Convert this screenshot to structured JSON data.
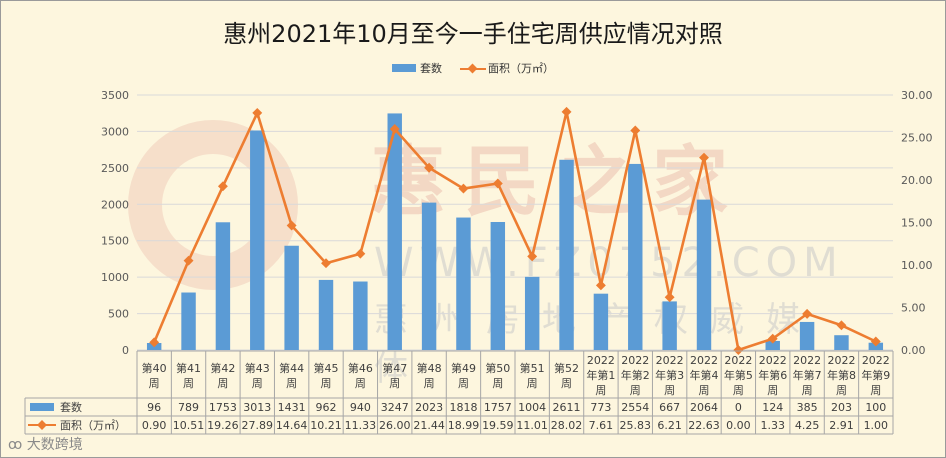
{
  "chart_data": {
    "type": "bar+line",
    "title": "惠州2021年10月至今一手住宅周供应情况对照",
    "categories": [
      "第40周",
      "第41周",
      "第42周",
      "第43周",
      "第44周",
      "第45周",
      "第46周",
      "第47周",
      "第48周",
      "第49周",
      "第50周",
      "第51周",
      "第52周",
      "2022年第1周",
      "2022年第2周",
      "2022年第3周",
      "2022年第4周",
      "2022年第5周",
      "2022年第6周",
      "2022年第7周",
      "2022年第8周",
      "2022年第9周"
    ],
    "category_lines": [
      [
        "第40",
        "周"
      ],
      [
        "第41",
        "周"
      ],
      [
        "第42",
        "周"
      ],
      [
        "第43",
        "周"
      ],
      [
        "第44",
        "周"
      ],
      [
        "第45",
        "周"
      ],
      [
        "第46",
        "周"
      ],
      [
        "第47",
        "周"
      ],
      [
        "第48",
        "周"
      ],
      [
        "第49",
        "周"
      ],
      [
        "第50",
        "周"
      ],
      [
        "第51",
        "周"
      ],
      [
        "第52",
        "周"
      ],
      [
        "2022",
        "年第1",
        "周"
      ],
      [
        "2022",
        "年第2",
        "周"
      ],
      [
        "2022",
        "年第3",
        "周"
      ],
      [
        "2022",
        "年第4",
        "周"
      ],
      [
        "2022",
        "年第5",
        "周"
      ],
      [
        "2022",
        "年第6",
        "周"
      ],
      [
        "2022",
        "年第7",
        "周"
      ],
      [
        "2022",
        "年第8",
        "周"
      ],
      [
        "2022",
        "年第9",
        "周"
      ]
    ],
    "series": [
      {
        "name": "套数",
        "kind": "bar",
        "axis": "left",
        "color": "#5b9bd5",
        "values": [
          96,
          789,
          1753,
          3013,
          1431,
          962,
          940,
          3247,
          2023,
          1818,
          1757,
          1004,
          2611,
          773,
          2554,
          667,
          2064,
          0,
          124,
          385,
          203,
          100
        ]
      },
      {
        "name": "面积（万㎡）",
        "kind": "line",
        "axis": "right",
        "color": "#ed7d31",
        "values": [
          0.9,
          10.51,
          19.26,
          27.89,
          14.64,
          10.21,
          11.33,
          26.0,
          21.44,
          18.99,
          19.59,
          11.01,
          28.02,
          7.61,
          25.83,
          6.21,
          22.63,
          0.0,
          1.33,
          4.25,
          2.91,
          1.0
        ]
      }
    ],
    "left_axis": {
      "ylim": [
        0,
        3500
      ],
      "ticks": [
        "0",
        "500",
        "1000",
        "1500",
        "2000",
        "2500",
        "3000",
        "3500"
      ]
    },
    "right_axis": {
      "ylim": [
        0,
        30
      ],
      "ticks": [
        "0.00",
        "5.00",
        "10.00",
        "15.00",
        "20.00",
        "25.00",
        "30.00"
      ]
    },
    "table_values": {
      "bar": [
        "96",
        "789",
        "1753",
        "3013",
        "1431",
        "962",
        "940",
        "3247",
        "2023",
        "1818",
        "1757",
        "1004",
        "2611",
        "773",
        "2554",
        "667",
        "2064",
        "0",
        "124",
        "385",
        "203",
        "100"
      ],
      "line": [
        "0.90",
        "10.51",
        "19.26",
        "27.89",
        "14.64",
        "10.21",
        "11.33",
        "26.00",
        "21.44",
        "18.99",
        "19.59",
        "11.01",
        "28.02",
        "7.61",
        "25.83",
        "6.21",
        "22.63",
        "0.00",
        "1.33",
        "4.25",
        "2.91",
        "1.00"
      ]
    },
    "grid": true,
    "legend": "top-center",
    "data_table": true
  },
  "legend": {
    "bar_label": "套数",
    "line_label": "面积（万㎡）"
  },
  "watermark": {
    "brand": "惠民之家",
    "url": "WWW.FZ0752.COM",
    "tagline": "惠州房地产权威媒体"
  },
  "source": "大数跨境"
}
